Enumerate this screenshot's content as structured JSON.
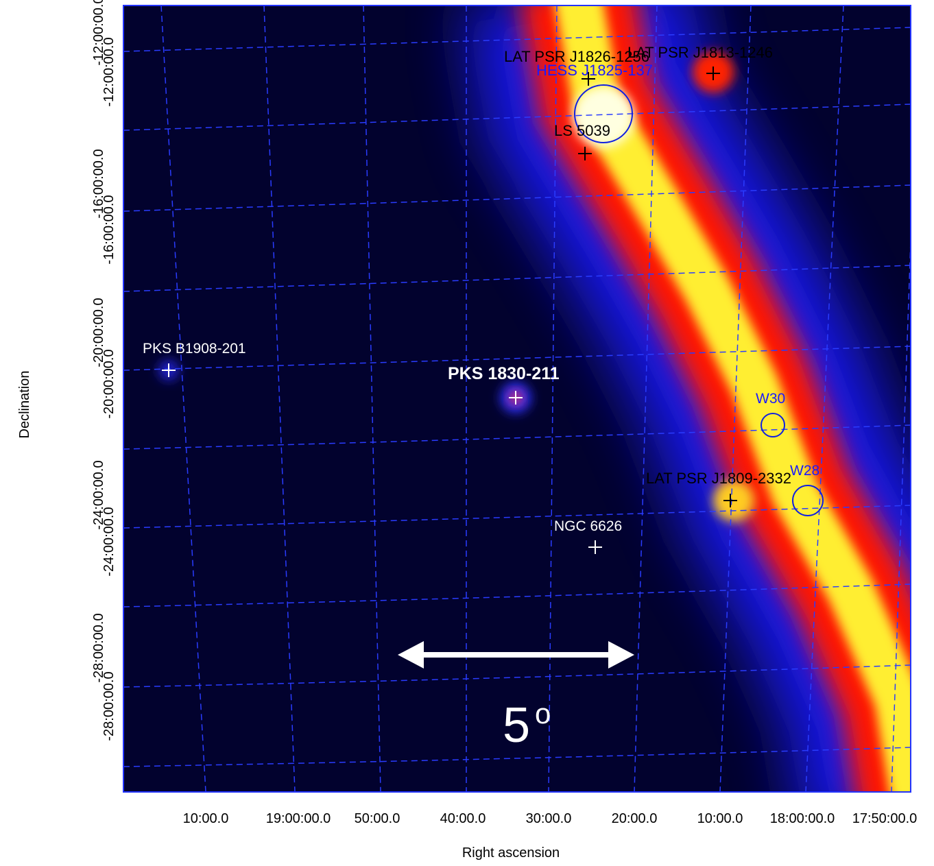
{
  "axes": {
    "x_title": "Right ascension",
    "y_title": "Declination",
    "x_ticks": [
      "10:00.0",
      "19:00:00.0",
      "50:00.0",
      "40:00.0",
      "30:00.0",
      "20:00.0",
      "10:00.0",
      "18:00:00.0",
      "17:50:00.0"
    ],
    "y_ticks": [
      "-12:00:00.0",
      "-12:00:00.0",
      "-16:00:00.0",
      "-16:00:00.0",
      "-20:00:00.0",
      "-20:00:00.0",
      "-24:00:00.0",
      "-24:00:00.0",
      "-28:00:00.0",
      "-28:00:00.0"
    ]
  },
  "sources": [
    {
      "label": "LAT PSR J1826-1256"
    },
    {
      "label": "LAT PSR J1813-1246"
    },
    {
      "label": "HESS J1825-137"
    },
    {
      "label": "LS 5039"
    },
    {
      "label": "PKS B1908-201"
    },
    {
      "label": "PKS 1830-211"
    },
    {
      "label": "W30"
    },
    {
      "label": "W28"
    },
    {
      "label": "LAT PSR J1809-2332"
    },
    {
      "label": "NGC 6626"
    }
  ],
  "scale": {
    "value": "5",
    "unit": "o"
  }
}
